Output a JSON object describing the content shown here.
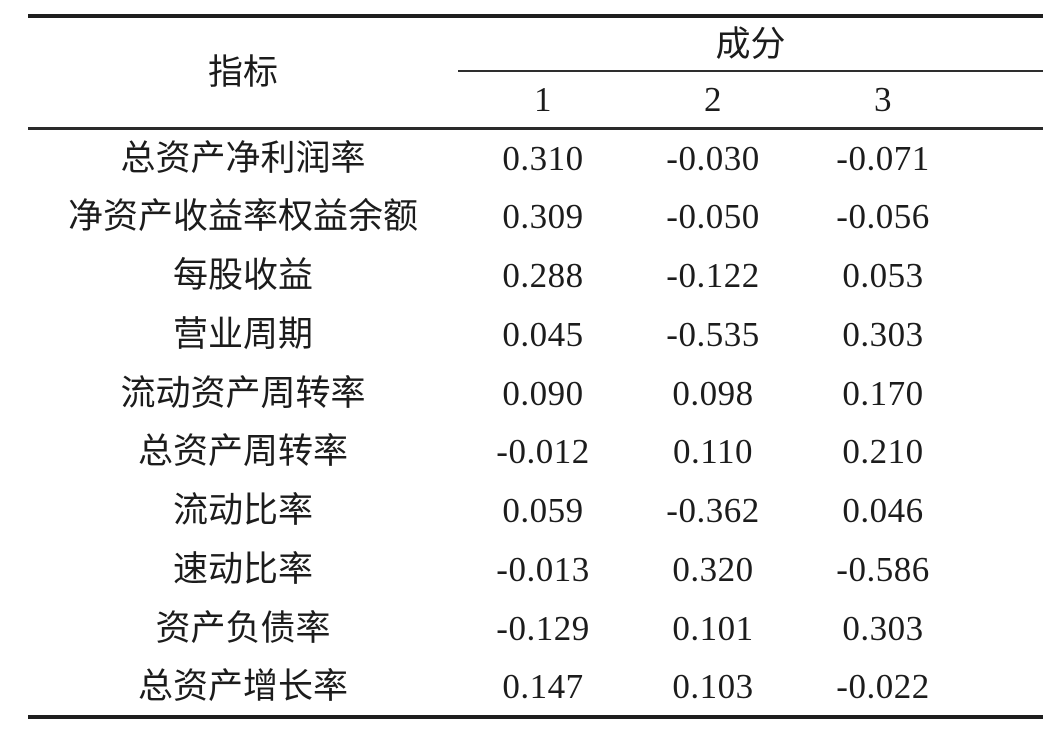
{
  "table": {
    "header": {
      "indicator_label": "指标",
      "component_label": "成分",
      "component_columns": [
        "1",
        "2",
        "3"
      ]
    },
    "rows": [
      {
        "label": "总资产净利润率",
        "values": [
          "0.310",
          "-0.030",
          "-0.071"
        ]
      },
      {
        "label": "净资产收益率权益余额",
        "values": [
          "0.309",
          "-0.050",
          "-0.056"
        ]
      },
      {
        "label": "每股收益",
        "values": [
          "0.288",
          "-0.122",
          "0.053"
        ]
      },
      {
        "label": "营业周期",
        "values": [
          "0.045",
          "-0.535",
          "0.303"
        ]
      },
      {
        "label": "流动资产周转率",
        "values": [
          "0.090",
          "0.098",
          "0.170"
        ]
      },
      {
        "label": "总资产周转率",
        "values": [
          "-0.012",
          "0.110",
          "0.210"
        ]
      },
      {
        "label": "流动比率",
        "values": [
          "0.059",
          "-0.362",
          "0.046"
        ]
      },
      {
        "label": "速动比率",
        "values": [
          "-0.013",
          "0.320",
          "-0.586"
        ]
      },
      {
        "label": "资产负债率",
        "values": [
          "-0.129",
          "0.101",
          "0.303"
        ]
      },
      {
        "label": "总资产增长率",
        "values": [
          "0.147",
          "0.103",
          "-0.022"
        ]
      }
    ],
    "style": {
      "text_color": "#1c1c1c",
      "thick_rule_color": "#1e1e1e",
      "thin_rule_color": "#2e2e2e",
      "background": "#ffffff"
    }
  }
}
